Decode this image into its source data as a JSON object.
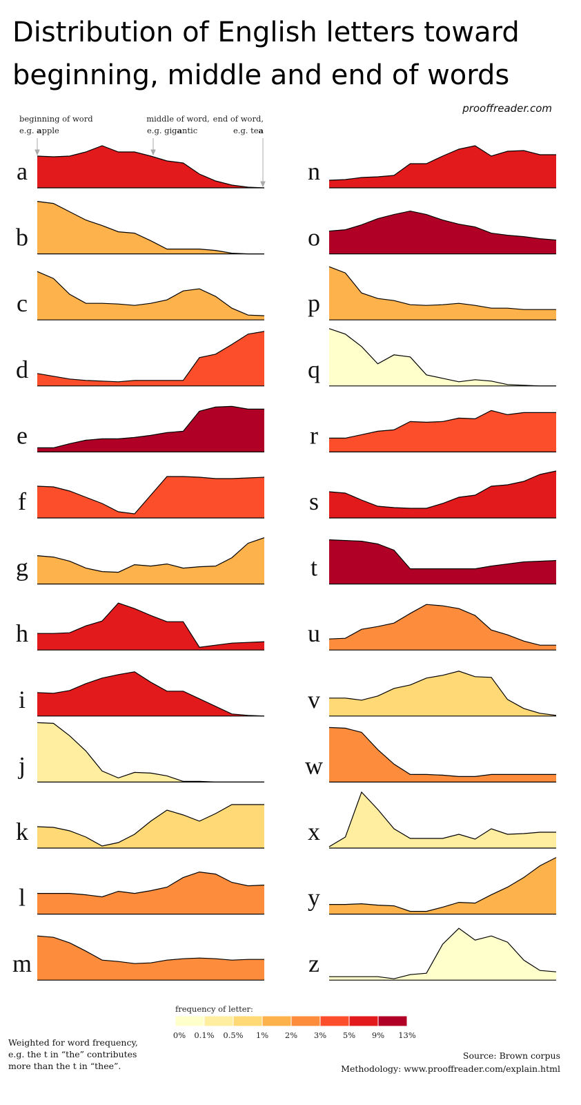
{
  "chart_data": {
    "type": "area",
    "title": [
      "Distribution of English letters toward",
      "beginning, middle and end of words"
    ],
    "site": "prooffreader.com",
    "annotations": [
      {
        "line1": "beginning of word",
        "prefix": "e.g. ",
        "bold": "a",
        "suffix": "pple"
      },
      {
        "line1": "middle of word,",
        "prefix": "e.g. gig",
        "bold": "a",
        "suffix": "ntic"
      },
      {
        "line1": "end of word,",
        "prefix": "e.g. te",
        "bold": "a",
        "suffix": ""
      }
    ],
    "ylim": [
      0,
      90
    ],
    "panels": [
      {
        "letter": "a",
        "color": "#e31a1c",
        "values": [
          46,
          45,
          46,
          52,
          61,
          52,
          52,
          46,
          39,
          36,
          20,
          10,
          4,
          1,
          0
        ]
      },
      {
        "letter": "b",
        "color": "#feb24c",
        "values": [
          76,
          73,
          61,
          49,
          41,
          32,
          30,
          19,
          7,
          7,
          7,
          5,
          1,
          0,
          0
        ]
      },
      {
        "letter": "c",
        "color": "#feb24c",
        "values": [
          70,
          60,
          37,
          24,
          24,
          23,
          21,
          24,
          29,
          42,
          45,
          34,
          17,
          7,
          6
        ]
      },
      {
        "letter": "d",
        "color": "#fc4e2a",
        "values": [
          18,
          14,
          10,
          8,
          7,
          6,
          8,
          8,
          8,
          8,
          41,
          46,
          60,
          75,
          79
        ]
      },
      {
        "letter": "e",
        "color": "#b10026",
        "values": [
          6,
          6,
          12,
          17,
          19,
          19,
          21,
          24,
          28,
          30,
          59,
          65,
          66,
          62,
          62
        ]
      },
      {
        "letter": "f",
        "color": "#fc4e2a",
        "values": [
          46,
          45,
          39,
          30,
          21,
          9,
          6,
          33,
          60,
          60,
          59,
          57,
          57,
          58,
          59
        ]
      },
      {
        "letter": "g",
        "color": "#feb24c",
        "values": [
          41,
          39,
          33,
          23,
          18,
          17,
          28,
          26,
          29,
          23,
          25,
          26,
          38,
          59,
          67
        ]
      },
      {
        "letter": "h",
        "color": "#e31a1c",
        "values": [
          24,
          24,
          25,
          35,
          42,
          68,
          60,
          50,
          41,
          41,
          4,
          7,
          10,
          11,
          12
        ]
      },
      {
        "letter": "i",
        "color": "#e31a1c",
        "values": [
          34,
          33,
          37,
          47,
          55,
          60,
          64,
          49,
          36,
          36,
          25,
          14,
          3,
          1,
          0
        ]
      },
      {
        "letter": "j",
        "color": "#ffeda0",
        "values": [
          86,
          85,
          67,
          45,
          16,
          6,
          14,
          13,
          9,
          1,
          1,
          0,
          0,
          0,
          0
        ]
      },
      {
        "letter": "k",
        "color": "#fed976",
        "values": [
          31,
          30,
          25,
          16,
          3,
          8,
          20,
          39,
          55,
          48,
          39,
          50,
          63,
          63,
          63
        ]
      },
      {
        "letter": "l",
        "color": "#fd8d3c",
        "values": [
          30,
          30,
          30,
          28,
          25,
          33,
          30,
          34,
          39,
          53,
          61,
          58,
          46,
          41,
          42
        ]
      },
      {
        "letter": "m",
        "color": "#fd8d3c",
        "values": [
          64,
          62,
          54,
          42,
          29,
          27,
          24,
          25,
          29,
          31,
          32,
          31,
          29,
          30,
          30
        ]
      },
      {
        "letter": "n",
        "color": "#e31a1c",
        "values": [
          11,
          12,
          15,
          16,
          18,
          35,
          35,
          46,
          56,
          61,
          46,
          53,
          54,
          48,
          48
        ]
      },
      {
        "letter": "o",
        "color": "#b10026",
        "values": [
          33,
          35,
          42,
          51,
          57,
          62,
          57,
          49,
          43,
          39,
          30,
          27,
          25,
          22,
          20
        ]
      },
      {
        "letter": "p",
        "color": "#feb24c",
        "values": [
          77,
          68,
          39,
          31,
          28,
          22,
          21,
          22,
          24,
          21,
          17,
          17,
          15,
          15,
          15
        ]
      },
      {
        "letter": "q",
        "color": "#ffffcc",
        "values": [
          83,
          75,
          57,
          32,
          45,
          42,
          16,
          11,
          6,
          9,
          7,
          2,
          1,
          0,
          0
        ]
      },
      {
        "letter": "r",
        "color": "#fc4e2a",
        "values": [
          20,
          20,
          25,
          30,
          32,
          44,
          43,
          44,
          49,
          48,
          60,
          54,
          57,
          57,
          57
        ]
      },
      {
        "letter": "s",
        "color": "#e31a1c",
        "values": [
          38,
          36,
          26,
          17,
          15,
          14,
          14,
          21,
          30,
          33,
          46,
          48,
          53,
          63,
          68
        ]
      },
      {
        "letter": "t",
        "color": "#b10026",
        "values": [
          64,
          63,
          62,
          58,
          49,
          22,
          22,
          22,
          22,
          22,
          26,
          29,
          32,
          33,
          34
        ]
      },
      {
        "letter": "u",
        "color": "#fd8d3c",
        "values": [
          16,
          17,
          30,
          34,
          39,
          53,
          66,
          64,
          60,
          50,
          29,
          22,
          13,
          7,
          7
        ]
      },
      {
        "letter": "v",
        "color": "#fed976",
        "values": [
          26,
          26,
          23,
          29,
          40,
          45,
          55,
          59,
          65,
          57,
          56,
          24,
          11,
          4,
          1
        ]
      },
      {
        "letter": "w",
        "color": "#fd8d3c",
        "values": [
          79,
          78,
          72,
          47,
          26,
          11,
          11,
          10,
          8,
          8,
          11,
          11,
          11,
          11,
          11
        ]
      },
      {
        "letter": "x",
        "color": "#ffeda0",
        "values": [
          2,
          16,
          81,
          56,
          28,
          14,
          14,
          14,
          20,
          13,
          28,
          20,
          21,
          23,
          23
        ]
      },
      {
        "letter": "y",
        "color": "#feb24c",
        "values": [
          14,
          14,
          15,
          13,
          12,
          4,
          4,
          10,
          17,
          16,
          28,
          39,
          53,
          70,
          82
        ]
      },
      {
        "letter": "z",
        "color": "#ffffcc",
        "values": [
          5,
          5,
          5,
          5,
          2,
          8,
          10,
          52,
          75,
          58,
          64,
          55,
          29,
          14,
          12
        ]
      }
    ],
    "legend": {
      "title": "frequency of letter:",
      "colors": [
        "#ffffcc",
        "#ffeda0",
        "#fed976",
        "#feb24c",
        "#fd8d3c",
        "#fc4e2a",
        "#e31a1c",
        "#b10026"
      ],
      "labels": [
        "0%",
        "0.1%",
        "0.5%",
        "1%",
        "2%",
        "3%",
        "5%",
        "9%",
        "13%"
      ]
    },
    "note": [
      "Weighted for word frequency,",
      "e.g. the t in “the” contributes",
      "more than the t in “thee”."
    ],
    "source": [
      "Source: Brown corpus",
      "Methodology: www.prooffreader.com/explain.html"
    ]
  }
}
